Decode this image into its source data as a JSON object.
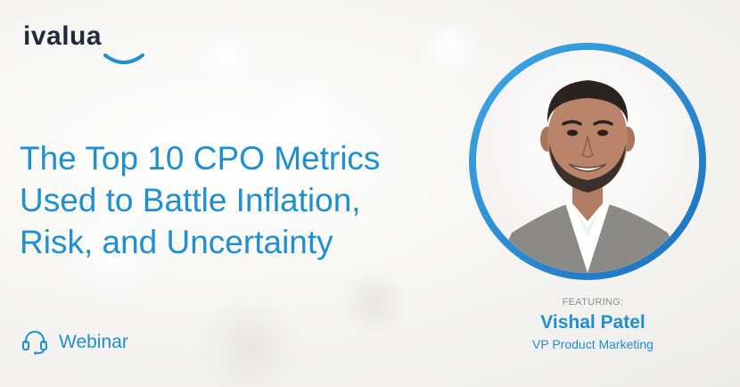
{
  "brand": {
    "logo_text": "ivalua",
    "accent_color": "#1e8fd0",
    "logo_color": "#1f2a3a"
  },
  "headline": {
    "lines": [
      "The Top 10 CPO Metrics",
      "Used to Battle Inflation,",
      "Risk, and Uncertainty"
    ]
  },
  "event": {
    "icon": "headset-icon",
    "type_label": "Webinar"
  },
  "speaker": {
    "featuring_label": "FEATURING:",
    "name": "Vishal Patel",
    "title": "VP Product Marketing",
    "ring_color": "#2a8fd8"
  }
}
